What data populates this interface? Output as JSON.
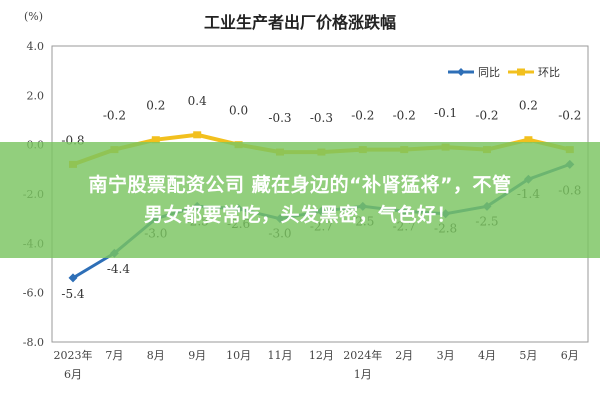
{
  "chart_data": {
    "type": "line",
    "title": "工业生产者出厂价格涨跌幅",
    "ylabel": "(%)",
    "ylim": [
      -8.0,
      4.0
    ],
    "yticks": [
      "4.0",
      "2.0",
      "0.0",
      "-2.0",
      "-4.0",
      "-6.0",
      "-8.0"
    ],
    "grid": false,
    "legend_position": "top-right",
    "categories": [
      [
        "2023年",
        "6月"
      ],
      [
        "7月"
      ],
      [
        "8月"
      ],
      [
        "9月"
      ],
      [
        "10月"
      ],
      [
        "11月"
      ],
      [
        "12月"
      ],
      [
        "2024年",
        "1月"
      ],
      [
        "2月"
      ],
      [
        "3月"
      ],
      [
        "4月"
      ],
      [
        "5月"
      ],
      [
        "6月"
      ]
    ],
    "series": [
      {
        "name": "同比",
        "color": "#2e6fb7",
        "values": [
          -5.4,
          -4.4,
          -3.0,
          -2.5,
          -2.6,
          -3.0,
          -2.7,
          -2.5,
          -2.7,
          -2.8,
          -2.5,
          -1.4,
          -0.8
        ],
        "labels": [
          "-5.4",
          "-4.4",
          "-3.0",
          "-2.5",
          "-2.6",
          "-3.0",
          "-2.7",
          "-2.5",
          "-2.7",
          "-2.8",
          "-2.5",
          "-1.4",
          "-0.8"
        ]
      },
      {
        "name": "环比",
        "color": "#f2c01e",
        "values": [
          -0.8,
          -0.2,
          0.2,
          0.4,
          0.0,
          -0.3,
          -0.3,
          -0.2,
          -0.2,
          -0.1,
          -0.2,
          0.2,
          -0.2
        ],
        "labels": [
          "-0.8",
          "-0.2",
          "0.2",
          "0.4",
          "0.0",
          "-0.3",
          "-0.3",
          "-0.2",
          "-0.2",
          "-0.1",
          "-0.2",
          "0.2",
          "-0.2"
        ]
      }
    ]
  },
  "banner": {
    "line1": "南宁股票配资公司 藏在身边的“补肾猛将”，不管",
    "line2": "男女都要常吃，头发黑密，气色好！"
  }
}
